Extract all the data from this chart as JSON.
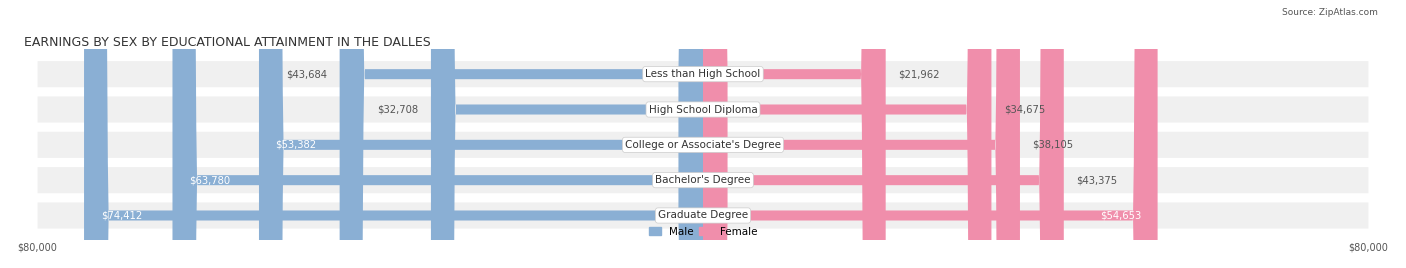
{
  "title": "EARNINGS BY SEX BY EDUCATIONAL ATTAINMENT IN THE DALLES",
  "source": "Source: ZipAtlas.com",
  "categories": [
    "Less than High School",
    "High School Diploma",
    "College or Associate's Degree",
    "Bachelor's Degree",
    "Graduate Degree"
  ],
  "male_values": [
    43684,
    32708,
    53382,
    63780,
    74412
  ],
  "female_values": [
    21962,
    34675,
    38105,
    43375,
    54653
  ],
  "male_color": "#8aafd4",
  "female_color": "#f08eab",
  "bar_bg_color": "#e8e8e8",
  "row_bg_color": "#f0f0f0",
  "axis_max": 80000,
  "title_fontsize": 9,
  "label_fontsize": 7.5,
  "value_fontsize": 7.2,
  "background_color": "#ffffff"
}
